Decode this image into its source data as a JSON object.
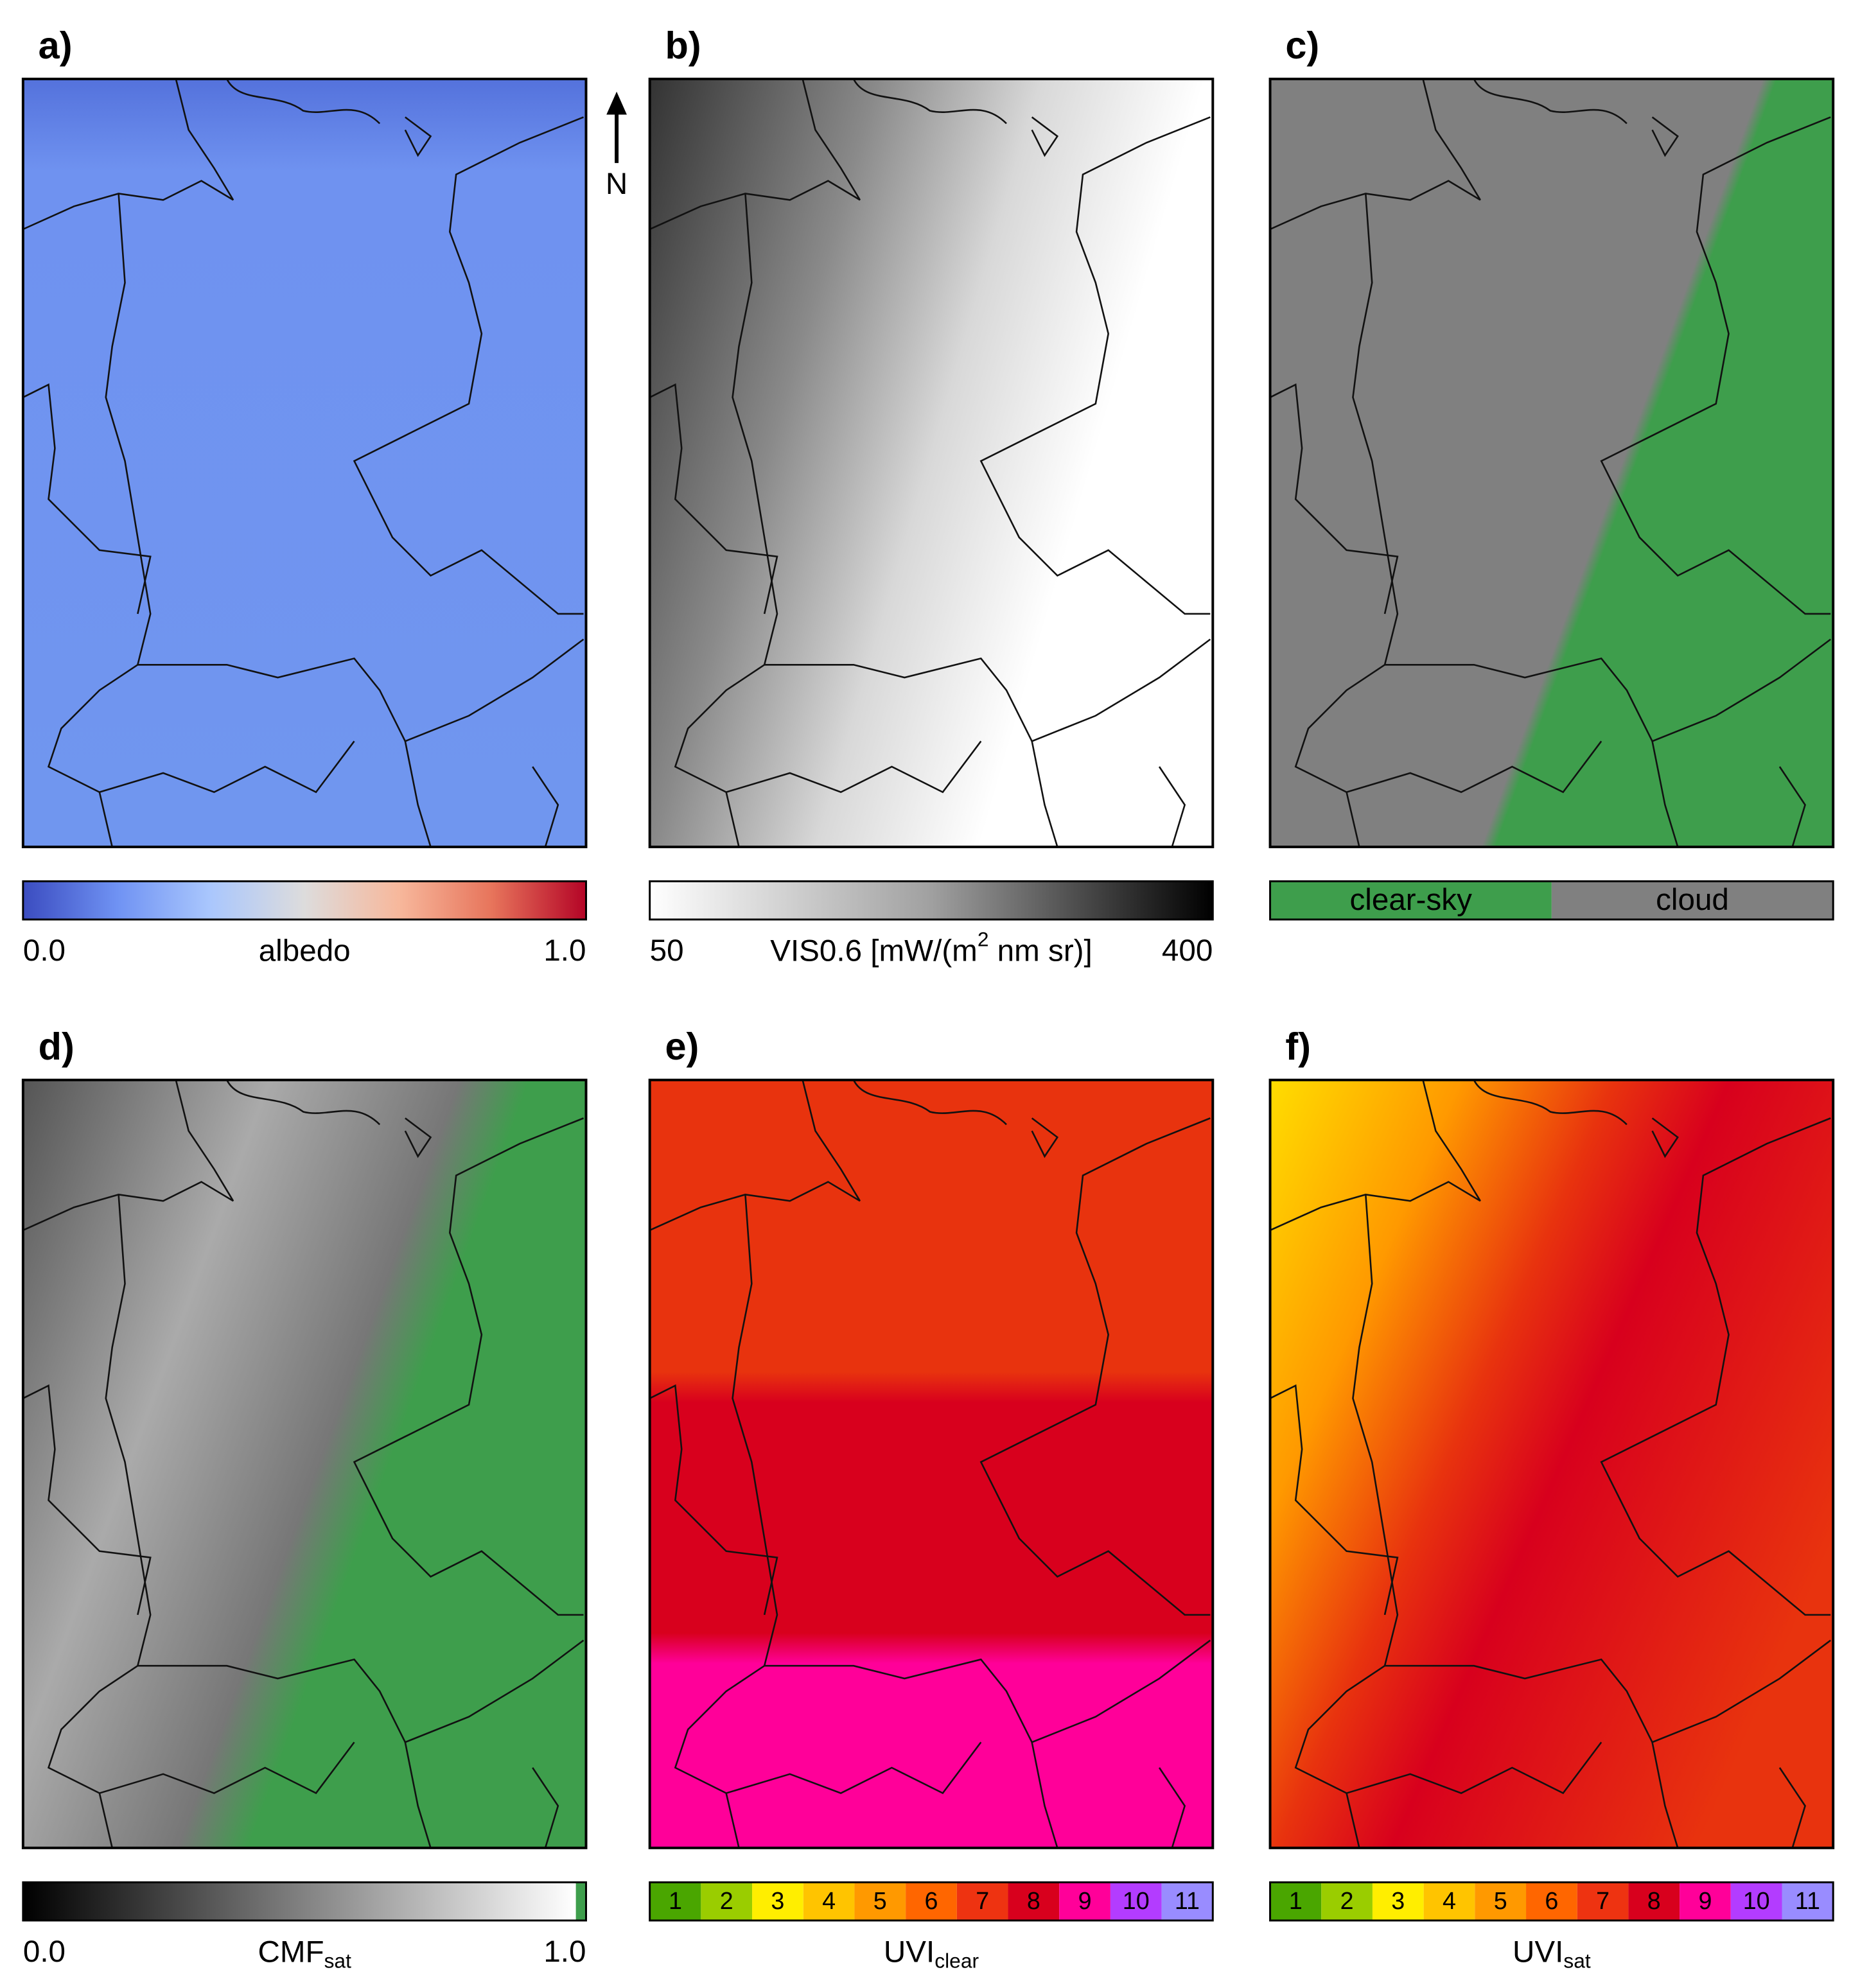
{
  "north_label": "N",
  "panels": [
    {
      "label": "a)",
      "colorbar": {
        "kind": "gradient",
        "colors": [
          "#3b4cc0",
          "#6f92f3",
          "#aac7fd",
          "#dddcdc",
          "#f7b89c",
          "#e7745b",
          "#b40426"
        ],
        "min_label": "0.0",
        "title": {
          "text": "albedo"
        },
        "max_label": "1.0"
      }
    },
    {
      "label": "b)",
      "colorbar": {
        "kind": "gradient",
        "colors": [
          "#ffffff",
          "#a0a0a0",
          "#000000"
        ],
        "min_label": "50",
        "title": {
          "text": "VIS0.6 [mW/(m",
          "sup": "2",
          "tail": " nm sr)]"
        },
        "max_label": "400"
      }
    },
    {
      "label": "c)",
      "colorbar": {
        "kind": "legend",
        "items": [
          {
            "name": "clear-sky",
            "color": "#3e9e4c"
          },
          {
            "name": "cloud",
            "color": "#808080"
          }
        ]
      }
    },
    {
      "label": "d)",
      "colorbar": {
        "kind": "gradient",
        "colors": [
          "#000000",
          "#808080",
          "#ffffff"
        ],
        "end_color": "#3e9e4c",
        "min_label": "0.0",
        "title": {
          "text": "CMF",
          "sub": "sat"
        },
        "max_label": "1.0"
      }
    },
    {
      "label": "e)",
      "colorbar": {
        "kind": "classes",
        "classes": [
          1,
          2,
          3,
          4,
          5,
          6,
          7,
          8,
          9,
          10,
          11
        ],
        "colors": [
          "#4aa600",
          "#9acd00",
          "#ffee00",
          "#ffc400",
          "#ff9900",
          "#ff6600",
          "#ee3311",
          "#d8001d",
          "#ff0099",
          "#b33cff",
          "#998cff"
        ],
        "title": {
          "text": "UVI",
          "sub": "clear"
        }
      }
    },
    {
      "label": "f)",
      "colorbar": {
        "kind": "classes",
        "classes": [
          1,
          2,
          3,
          4,
          5,
          6,
          7,
          8,
          9,
          10,
          11
        ],
        "colors": [
          "#4aa600",
          "#9acd00",
          "#ffee00",
          "#ffc400",
          "#ff9900",
          "#ff6600",
          "#ee3311",
          "#d8001d",
          "#ff0099",
          "#b33cff",
          "#998cff"
        ],
        "title": {
          "text": "UVI",
          "sub": "sat"
        }
      }
    }
  ]
}
